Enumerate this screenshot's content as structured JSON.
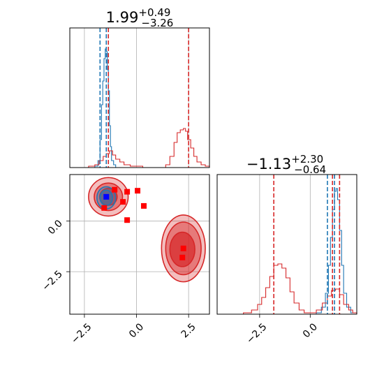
{
  "chart_data": [
    {
      "panel": "top-left",
      "type": "histogram",
      "title": {
        "median": "1.99",
        "plus": "+0.49",
        "minus": "−3.26"
      },
      "xlim": [
        -3.2,
        3.5
      ],
      "xticks": [
        -2.5,
        0.0,
        2.5
      ],
      "grid": true,
      "vlines": [
        {
          "x": -1.75,
          "color": "#1f77b4",
          "style": "dashed"
        },
        {
          "x": -1.45,
          "color": "#1f77b4",
          "style": "dashed"
        },
        {
          "x": -1.35,
          "color": "#d62728",
          "style": "dashed"
        },
        {
          "x": 2.5,
          "color": "#d62728",
          "style": "dashed"
        }
      ],
      "series": [
        {
          "color": "#1f77b4",
          "points": [
            [
              -2.3,
              0
            ],
            [
              -2.0,
              0.01
            ],
            [
              -1.85,
              0.05
            ],
            [
              -1.75,
              0.2
            ],
            [
              -1.68,
              0.45
            ],
            [
              -1.62,
              0.62
            ],
            [
              -1.56,
              0.78
            ],
            [
              -1.5,
              0.85
            ],
            [
              -1.45,
              0.83
            ],
            [
              -1.4,
              0.7
            ],
            [
              -1.35,
              0.55
            ],
            [
              -1.3,
              0.3
            ],
            [
              -1.25,
              0.15
            ],
            [
              -1.2,
              0.05
            ],
            [
              -1.1,
              0.02
            ],
            [
              -1.0,
              0
            ]
          ]
        },
        {
          "color": "#d62728",
          "points": [
            [
              -2.6,
              0
            ],
            [
              -2.3,
              0.01
            ],
            [
              -2.0,
              0.02
            ],
            [
              -1.8,
              0.05
            ],
            [
              -1.6,
              0.08
            ],
            [
              -1.45,
              0.1
            ],
            [
              -1.3,
              0.12
            ],
            [
              -1.15,
              0.09
            ],
            [
              -1.0,
              0.06
            ],
            [
              -0.8,
              0.04
            ],
            [
              -0.6,
              0.02
            ],
            [
              -0.3,
              0.01
            ],
            [
              0.0,
              0.01
            ],
            [
              0.3,
              0
            ],
            [
              1.0,
              0
            ],
            [
              1.4,
              0.02
            ],
            [
              1.6,
              0.08
            ],
            [
              1.8,
              0.18
            ],
            [
              1.95,
              0.25
            ],
            [
              2.1,
              0.27
            ],
            [
              2.25,
              0.28
            ],
            [
              2.35,
              0.26
            ],
            [
              2.45,
              0.2
            ],
            [
              2.6,
              0.14
            ],
            [
              2.75,
              0.08
            ],
            [
              2.9,
              0.04
            ],
            [
              3.1,
              0.02
            ],
            [
              3.3,
              0.01
            ],
            [
              3.5,
              0
            ]
          ]
        }
      ]
    },
    {
      "panel": "bottom-left",
      "type": "scatter",
      "xlim": [
        -3.2,
        3.5
      ],
      "ylim": [
        -4.6,
        2.3
      ],
      "xticks": [
        -2.5,
        0.0,
        2.5
      ],
      "yticks": [
        -2.5,
        0.0
      ],
      "xtick_labels": [
        "−2.5",
        "0.0",
        "2.5"
      ],
      "ytick_labels": [
        "−2.5",
        "0.0"
      ],
      "grid": true,
      "contours": [
        {
          "color": "#d62728",
          "cx": -1.35,
          "cy": 1.2,
          "rx": 0.95,
          "ry": 0.95,
          "fill_opacity": 0.3
        },
        {
          "color": "#d62728",
          "cx": -1.35,
          "cy": 1.2,
          "rx": 0.68,
          "ry": 0.68,
          "fill_opacity": 0.45
        },
        {
          "color": "#d62728",
          "cx": -1.35,
          "cy": 1.2,
          "rx": 0.42,
          "ry": 0.42,
          "fill_opacity": 0.7
        },
        {
          "color": "#d62728",
          "cx": 2.25,
          "cy": -1.35,
          "rx": 1.05,
          "ry": 1.65,
          "fill_opacity": 0.3
        },
        {
          "color": "#d62728",
          "cx": 2.25,
          "cy": -1.35,
          "rx": 0.85,
          "ry": 1.3,
          "fill_opacity": 0.45
        },
        {
          "color": "#d62728",
          "cx": 2.2,
          "cy": -1.4,
          "rx": 0.6,
          "ry": 0.85,
          "fill_opacity": 0.7
        },
        {
          "color": "#1f77b4",
          "cx": -1.45,
          "cy": 1.15,
          "rx": 0.45,
          "ry": 0.55,
          "fill_opacity": 0.3
        },
        {
          "color": "#1f77b4",
          "cx": -1.45,
          "cy": 1.15,
          "rx": 0.3,
          "ry": 0.38,
          "fill_opacity": 0.5
        }
      ],
      "markers": [
        {
          "x": -1.55,
          "y": 0.65,
          "color": "#ff0000"
        },
        {
          "x": -1.05,
          "y": 1.55,
          "color": "#ff0000"
        },
        {
          "x": -0.65,
          "y": 0.95,
          "color": "#ff0000"
        },
        {
          "x": -0.45,
          "y": 1.45,
          "color": "#ff0000"
        },
        {
          "x": 0.05,
          "y": 1.5,
          "color": "#ff0000"
        },
        {
          "x": 0.35,
          "y": 0.75,
          "color": "#ff0000"
        },
        {
          "x": -0.45,
          "y": 0.05,
          "color": "#ff0000"
        },
        {
          "x": 2.25,
          "y": -1.35,
          "color": "#ff0000"
        },
        {
          "x": 2.2,
          "y": -1.8,
          "color": "#ff0000"
        },
        {
          "x": -1.45,
          "y": 1.2,
          "color": "#0000ff"
        }
      ]
    },
    {
      "panel": "bottom-right",
      "type": "histogram",
      "title": {
        "median": "−1.13",
        "plus": "+2.30",
        "minus": "−0.64"
      },
      "xlim": [
        -4.6,
        2.3
      ],
      "xticks": [
        -2.5,
        0.0
      ],
      "xtick_labels": [
        "−2.5",
        "0.0"
      ],
      "grid": true,
      "vlines": [
        {
          "x": -1.8,
          "color": "#d62728",
          "style": "dashed"
        },
        {
          "x": 0.85,
          "color": "#1f77b4",
          "style": "dashed"
        },
        {
          "x": 1.2,
          "color": "#1f77b4",
          "style": "dashed"
        },
        {
          "x": 1.1,
          "color": "#d62728",
          "style": "dashed"
        },
        {
          "x": 1.45,
          "color": "#d62728",
          "style": "dashed"
        }
      ],
      "series": [
        {
          "color": "#1f77b4",
          "points": [
            [
              0.0,
              0
            ],
            [
              0.3,
              0.01
            ],
            [
              0.55,
              0.05
            ],
            [
              0.75,
              0.15
            ],
            [
              0.9,
              0.35
            ],
            [
              1.0,
              0.55
            ],
            [
              1.1,
              0.75
            ],
            [
              1.2,
              0.88
            ],
            [
              1.28,
              0.9
            ],
            [
              1.35,
              0.82
            ],
            [
              1.45,
              0.6
            ],
            [
              1.55,
              0.35
            ],
            [
              1.65,
              0.15
            ],
            [
              1.8,
              0.05
            ],
            [
              2.0,
              0.01
            ],
            [
              2.3,
              0
            ]
          ]
        },
        {
          "color": "#d62728",
          "points": [
            [
              -3.6,
              0
            ],
            [
              -3.3,
              0.01
            ],
            [
              -2.9,
              0.03
            ],
            [
              -2.6,
              0.07
            ],
            [
              -2.4,
              0.12
            ],
            [
              -2.2,
              0.19
            ],
            [
              -2.0,
              0.27
            ],
            [
              -1.8,
              0.35
            ],
            [
              -1.6,
              0.36
            ],
            [
              -1.4,
              0.33
            ],
            [
              -1.2,
              0.26
            ],
            [
              -1.0,
              0.16
            ],
            [
              -0.8,
              0.08
            ],
            [
              -0.55,
              0.03
            ],
            [
              -0.3,
              0.01
            ],
            [
              0.0,
              0.01
            ],
            [
              0.3,
              0.03
            ],
            [
              0.6,
              0.08
            ],
            [
              0.85,
              0.13
            ],
            [
              1.05,
              0.17
            ],
            [
              1.25,
              0.18
            ],
            [
              1.45,
              0.14
            ],
            [
              1.65,
              0.07
            ],
            [
              1.9,
              0.03
            ],
            [
              2.1,
              0.01
            ],
            [
              2.3,
              0
            ]
          ]
        }
      ]
    }
  ]
}
